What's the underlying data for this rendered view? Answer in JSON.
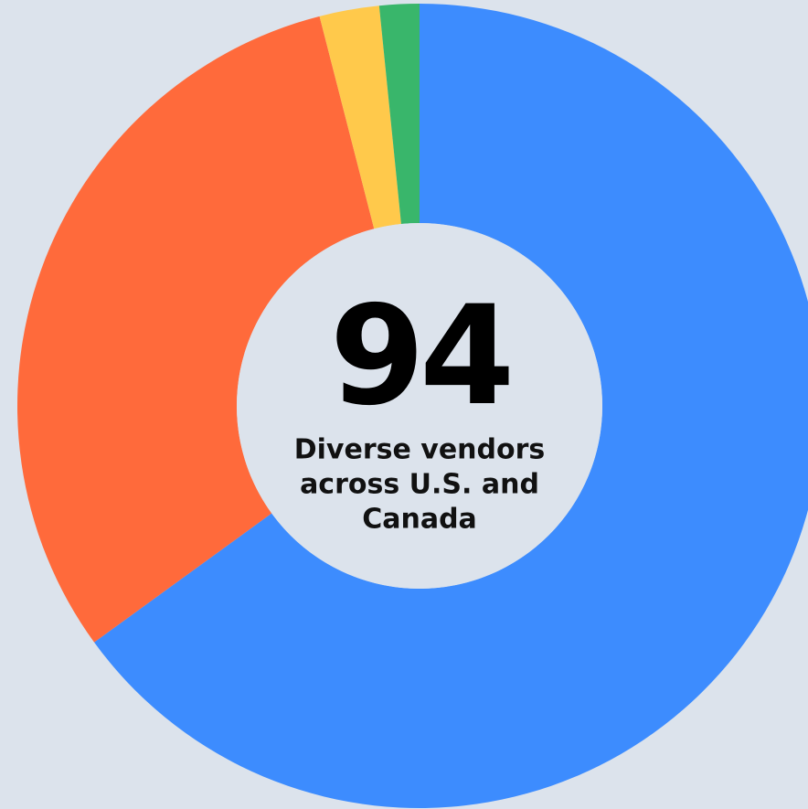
{
  "chart_data": {
    "type": "donut",
    "center_value": "94",
    "center_text": [
      "Diverse vendors",
      "across U.S. and",
      "Canada"
    ],
    "values": [
      65,
      31,
      2.4,
      1.6
    ],
    "colors": [
      "#3d8cfe",
      "#ff6a3b",
      "#ffc94b",
      "#39b66b"
    ]
  }
}
